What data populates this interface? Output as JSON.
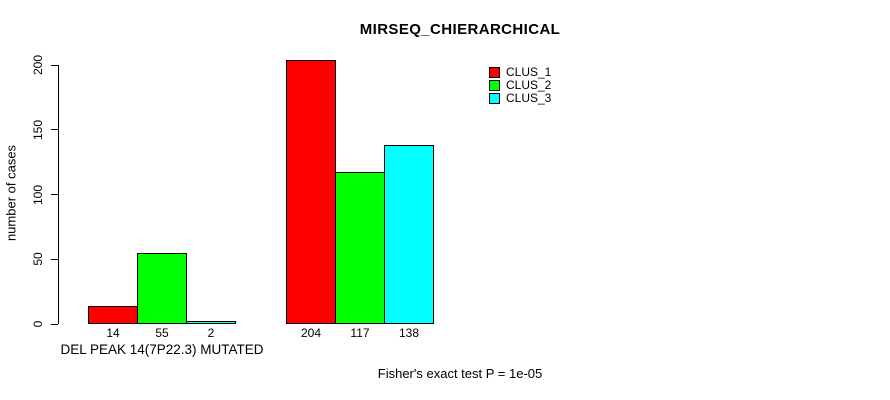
{
  "chart_data": {
    "type": "bar",
    "title": "MIRSEQ_CHIERARCHICAL",
    "ylabel": "number of cases",
    "xlabel": "",
    "groups": [
      "DEL PEAK 14(7P22.3) MUTATED",
      ""
    ],
    "series": [
      {
        "name": "CLUS_1",
        "color": "#ff0000",
        "values": [
          14,
          204
        ]
      },
      {
        "name": "CLUS_2",
        "color": "#00ff00",
        "values": [
          55,
          117
        ]
      },
      {
        "name": "CLUS_3",
        "color": "#00ffff",
        "values": [
          2,
          138
        ]
      }
    ],
    "bar_value_labels": [
      [
        14,
        55,
        2
      ],
      [
        204,
        117,
        138
      ]
    ],
    "yticks": [
      0,
      50,
      100,
      150,
      200
    ],
    "ylim": [
      0,
      200
    ],
    "grid": false,
    "legend_position": "top-right",
    "annotation": "Fisher's exact test P = 1e-05",
    "colors": {
      "background": "#ffffff",
      "axis": "#000000",
      "bar_border": "#000000"
    }
  }
}
